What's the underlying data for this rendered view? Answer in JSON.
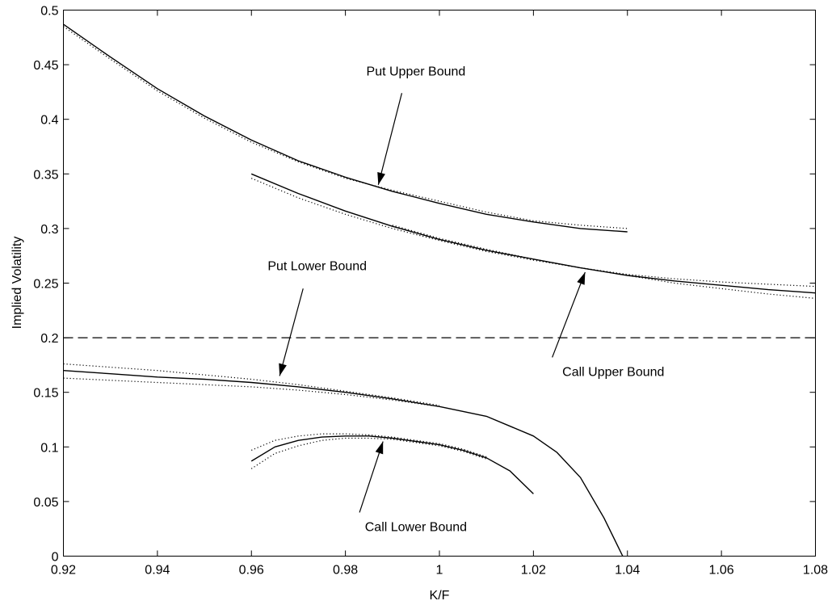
{
  "chart_data": {
    "type": "line",
    "xlabel": "K/F",
    "ylabel": "Implied Volatility",
    "xlim": [
      0.92,
      1.08
    ],
    "ylim": [
      0,
      0.5
    ],
    "x_ticks": [
      "0.92",
      "0.94",
      "0.96",
      "0.98",
      "1",
      "1.02",
      "1.04",
      "1.06",
      "1.08"
    ],
    "y_ticks": [
      "0",
      "0.05",
      "0.1",
      "0.15",
      "0.2",
      "0.25",
      "0.3",
      "0.35",
      "0.4",
      "0.45",
      "0.5"
    ],
    "x_tick_values": [
      0.92,
      0.94,
      0.96,
      0.98,
      1.0,
      1.02,
      1.04,
      1.06,
      1.08
    ],
    "y_tick_values": [
      0,
      0.05,
      0.1,
      0.15,
      0.2,
      0.25,
      0.3,
      0.35,
      0.4,
      0.45,
      0.5
    ],
    "grid": false,
    "reference_line": {
      "y": 0.2,
      "style": "dashed"
    },
    "series": [
      {
        "style": "solid",
        "x": [
          0.92,
          0.93,
          0.94,
          0.95,
          0.96,
          0.97,
          0.98,
          0.99,
          1.0,
          1.01,
          1.02,
          1.03,
          1.04
        ],
        "y": [
          0.487,
          0.457,
          0.428,
          0.403,
          0.381,
          0.362,
          0.347,
          0.334,
          0.323,
          0.313,
          0.306,
          0.3,
          0.297
        ]
      },
      {
        "style": "dotted",
        "x": [
          0.92,
          0.93,
          0.94,
          0.95,
          0.96,
          0.97,
          0.98,
          0.99,
          1.0,
          1.01,
          1.02,
          1.03,
          1.04
        ],
        "y": [
          0.485,
          0.455,
          0.426,
          0.401,
          0.379,
          0.361,
          0.346,
          0.335,
          0.325,
          0.315,
          0.307,
          0.303,
          0.3
        ]
      },
      {
        "style": "solid",
        "x": [
          0.96,
          0.97,
          0.98,
          0.99,
          1.0,
          1.01,
          1.02,
          1.03,
          1.04,
          1.05,
          1.06,
          1.07,
          1.08
        ],
        "y": [
          0.35,
          0.332,
          0.316,
          0.302,
          0.29,
          0.28,
          0.272,
          0.264,
          0.257,
          0.252,
          0.248,
          0.244,
          0.241
        ]
      },
      {
        "style": "dotted",
        "x": [
          0.96,
          0.97,
          0.98,
          0.99,
          1.0,
          1.01,
          1.02,
          1.03,
          1.04,
          1.05,
          1.06,
          1.07,
          1.08
        ],
        "y": [
          0.346,
          0.328,
          0.313,
          0.3,
          0.289,
          0.279,
          0.271,
          0.264,
          0.258,
          0.254,
          0.251,
          0.249,
          0.247
        ]
      },
      {
        "style": "dotted",
        "x": [
          0.99,
          1.0,
          1.01,
          1.02,
          1.03,
          1.04,
          1.05,
          1.06,
          1.07,
          1.08
        ],
        "y": [
          0.303,
          0.291,
          0.281,
          0.272,
          0.264,
          0.257,
          0.25,
          0.245,
          0.24,
          0.236
        ]
      },
      {
        "style": "solid",
        "x": [
          0.92,
          0.93,
          0.94,
          0.95,
          0.96,
          0.97,
          0.98,
          0.99,
          1.0,
          1.01,
          1.02,
          1.025,
          1.03,
          1.035,
          1.039
        ],
        "y": [
          0.17,
          0.167,
          0.164,
          0.162,
          0.159,
          0.155,
          0.15,
          0.144,
          0.137,
          0.128,
          0.11,
          0.095,
          0.072,
          0.035,
          0.0
        ]
      },
      {
        "style": "dotted",
        "x": [
          0.92,
          0.93,
          0.94,
          0.95,
          0.96,
          0.97,
          0.98,
          0.99,
          1.0
        ],
        "y": [
          0.176,
          0.173,
          0.17,
          0.166,
          0.162,
          0.157,
          0.151,
          0.145,
          0.138
        ]
      },
      {
        "style": "dotted",
        "x": [
          0.92,
          0.93,
          0.94,
          0.95,
          0.96,
          0.97,
          0.98,
          0.99,
          1.0
        ],
        "y": [
          0.163,
          0.161,
          0.159,
          0.157,
          0.155,
          0.152,
          0.148,
          0.143,
          0.137
        ]
      },
      {
        "style": "solid",
        "x": [
          0.96,
          0.965,
          0.97,
          0.975,
          0.98,
          0.985,
          0.99,
          0.995,
          1.0,
          1.005,
          1.01,
          1.015,
          1.02
        ],
        "y": [
          0.087,
          0.1,
          0.106,
          0.109,
          0.11,
          0.11,
          0.108,
          0.105,
          0.102,
          0.097,
          0.09,
          0.078,
          0.057
        ]
      },
      {
        "style": "dotted",
        "x": [
          0.96,
          0.965,
          0.97,
          0.975,
          0.98,
          0.985,
          0.99,
          0.995,
          1.0,
          1.005,
          1.01
        ],
        "y": [
          0.097,
          0.106,
          0.11,
          0.112,
          0.112,
          0.111,
          0.109,
          0.106,
          0.103,
          0.098,
          0.091
        ]
      },
      {
        "style": "dotted",
        "x": [
          0.96,
          0.965,
          0.97,
          0.975,
          0.98,
          0.985,
          0.99,
          0.995,
          1.0,
          1.005,
          1.01
        ],
        "y": [
          0.08,
          0.094,
          0.101,
          0.106,
          0.108,
          0.108,
          0.107,
          0.104,
          0.101,
          0.096,
          0.089
        ]
      }
    ],
    "annotations": [
      {
        "text": "Put Upper Bound",
        "text_at": [
          0.995,
          0.44
        ],
        "arrow_from": [
          0.992,
          0.424
        ],
        "arrow_to": [
          0.987,
          0.34
        ]
      },
      {
        "text": "Call Upper Bound",
        "text_at": [
          1.037,
          0.165
        ],
        "arrow_from": [
          1.024,
          0.182
        ],
        "arrow_to": [
          1.031,
          0.26
        ]
      },
      {
        "text": "Put Lower Bound",
        "text_at": [
          0.974,
          0.262
        ],
        "arrow_from": [
          0.971,
          0.245
        ],
        "arrow_to": [
          0.966,
          0.165
        ]
      },
      {
        "text": "Call Lower Bound",
        "text_at": [
          0.995,
          0.023
        ],
        "arrow_from": [
          0.983,
          0.04
        ],
        "arrow_to": [
          0.988,
          0.105
        ]
      }
    ]
  }
}
